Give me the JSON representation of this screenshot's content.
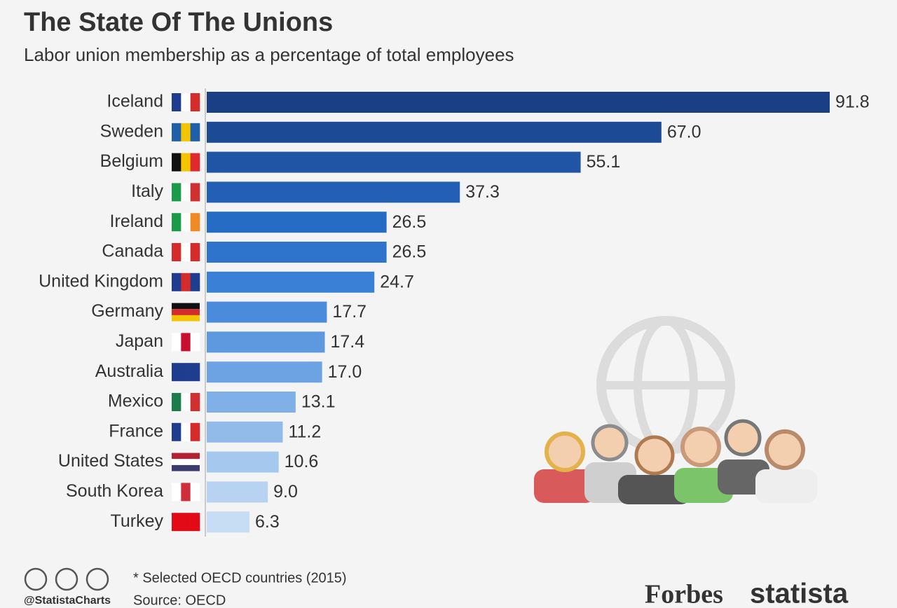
{
  "chart_data": {
    "type": "hbar",
    "title": "The State Of The Unions",
    "subtitle": "Labor union membership as a percentage of total employees",
    "categories": [
      "Iceland",
      "Sweden",
      "Belgium",
      "Italy",
      "Ireland",
      "Canada",
      "United Kingdom",
      "Germany",
      "Japan",
      "Australia",
      "Mexico",
      "France",
      "United States",
      "South Korea",
      "Turkey"
    ],
    "values": [
      91.8,
      67,
      55.1,
      37.3,
      26.5,
      26.5,
      24.7,
      17.7,
      17.4,
      17,
      13.1,
      11.2,
      10.6,
      9,
      6.3
    ],
    "value_labels": [
      "91.8",
      "67.0",
      "55.1",
      "37.3",
      "26.5",
      "26.5",
      "24.7",
      "17.7",
      "17.4",
      "17.0",
      "13.1",
      "11.2",
      "10.6",
      "9.0",
      "6.3"
    ],
    "colors": [
      "#1a3f85",
      "#1d4a95",
      "#2055a6",
      "#2360b5",
      "#276cc4",
      "#2e73cc",
      "#3a80d6",
      "#4b8bdb",
      "#5e98df",
      "#6ea3e3",
      "#80b0e7",
      "#92bbea",
      "#a5c8ee",
      "#b7d3f1",
      "#c7ddf4"
    ],
    "note": "* Selected OECD countries (2015)",
    "source": "Source: OECD",
    "credit": "@StatistaCharts",
    "logos": [
      "Forbes",
      "statista"
    ]
  }
}
